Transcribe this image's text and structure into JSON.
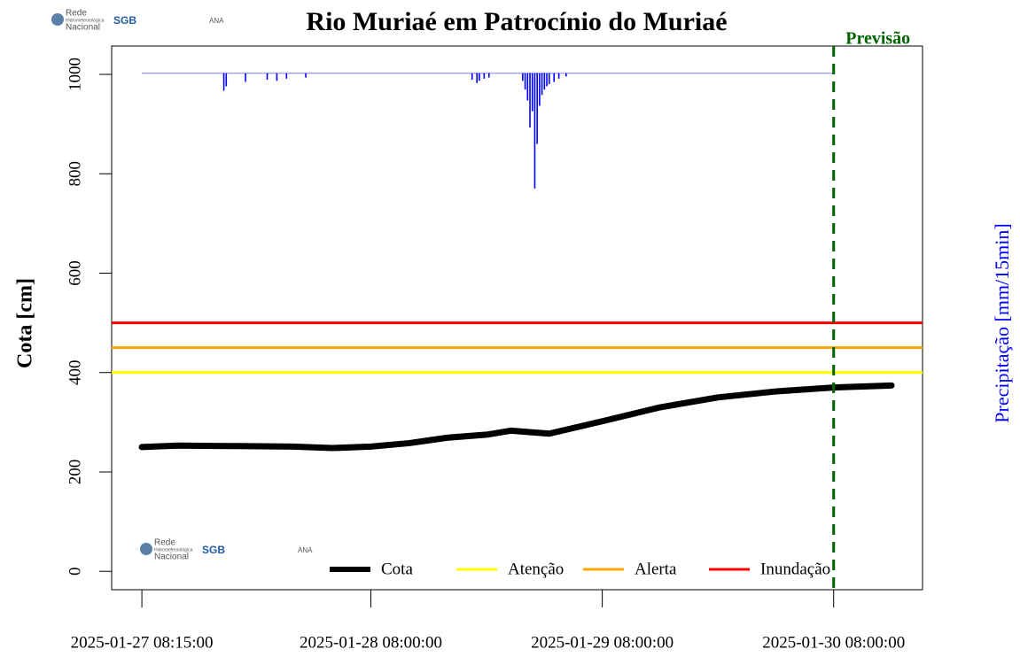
{
  "chart_data": {
    "type": "line",
    "title": "Rio Muriaé em Patrocínio do Muriaé",
    "logos": [
      "Rede",
      "Hidrometeorológica",
      "Nacional",
      "SGB",
      "ANA"
    ],
    "ylabel": "Cota [cm]",
    "y2label": "Precipitação [mm/15min]",
    "forecast": {
      "label": "Previsão",
      "x": "2025-01-30 08:00:00",
      "color": "#006400"
    },
    "xlim": [
      "2025-01-27 05:07:00",
      "2025-01-30 17:13:00"
    ],
    "xticks": [
      "2025-01-27 08:15:00",
      "2025-01-28 08:00:00",
      "2025-01-29 08:00:00",
      "2025-01-30 08:00:00"
    ],
    "ylim": [
      -37,
      1057
    ],
    "yticks": [
      0,
      200,
      400,
      600,
      800,
      1000
    ],
    "y2lim": [
      -2.5,
      47.5
    ],
    "series": [
      {
        "name": "Cota",
        "color": "#000000",
        "x": [
          "2025-01-27 08:15:00",
          "2025-01-27 12:00:00",
          "2025-01-27 18:00:00",
          "2025-01-28 00:00:00",
          "2025-01-28 04:00:00",
          "2025-01-28 08:00:00",
          "2025-01-28 12:00:00",
          "2025-01-28 16:00:00",
          "2025-01-28 20:00:00",
          "2025-01-28 22:30:00",
          "2025-01-29 02:30:00",
          "2025-01-29 08:00:00",
          "2025-01-29 14:00:00",
          "2025-01-29 20:00:00",
          "2025-01-30 02:00:00",
          "2025-01-30 08:00:00",
          "2025-01-30 14:00:00"
        ],
        "values": [
          250,
          253,
          252,
          251,
          248,
          251,
          258,
          269,
          275,
          283,
          277,
          302,
          330,
          350,
          362,
          370,
          374
        ]
      }
    ],
    "thresholds": [
      {
        "name": "Atenção",
        "value": 400,
        "color": "#ffff00"
      },
      {
        "name": "Alerta",
        "value": 450,
        "color": "#ffa500"
      },
      {
        "name": "Inundação",
        "value": 500,
        "color": "#ff0000"
      }
    ],
    "precipitation": {
      "axis": "y2",
      "color": "#0000ff",
      "x": [
        "2025-01-27 16:45:00",
        "2025-01-27 17:00:00",
        "2025-01-27 19:00:00",
        "2025-01-27 21:15:00",
        "2025-01-27 22:15:00",
        "2025-01-27 23:15:00",
        "2025-01-28 01:15:00",
        "2025-01-28 18:30:00",
        "2025-01-28 19:00:00",
        "2025-01-28 19:15:00",
        "2025-01-28 19:45:00",
        "2025-01-28 20:15:00",
        "2025-01-28 23:45:00",
        "2025-01-29 00:00:00",
        "2025-01-29 00:15:00",
        "2025-01-29 00:30:00",
        "2025-01-29 00:45:00",
        "2025-01-29 01:00:00",
        "2025-01-29 01:15:00",
        "2025-01-29 01:30:00",
        "2025-01-29 01:45:00",
        "2025-01-29 02:00:00",
        "2025-01-29 02:15:00",
        "2025-01-29 02:30:00",
        "2025-01-29 03:00:00",
        "2025-01-29 03:30:00",
        "2025-01-29 04:15:00"
      ],
      "values": [
        1.6,
        1.2,
        0.8,
        0.6,
        0.7,
        0.5,
        0.4,
        0.6,
        0.9,
        0.7,
        0.5,
        0.4,
        0.7,
        1.5,
        2.5,
        5.0,
        3.5,
        10.6,
        6.5,
        3.0,
        2.0,
        1.5,
        1.2,
        1.0,
        0.8,
        0.5,
        0.3
      ]
    }
  }
}
